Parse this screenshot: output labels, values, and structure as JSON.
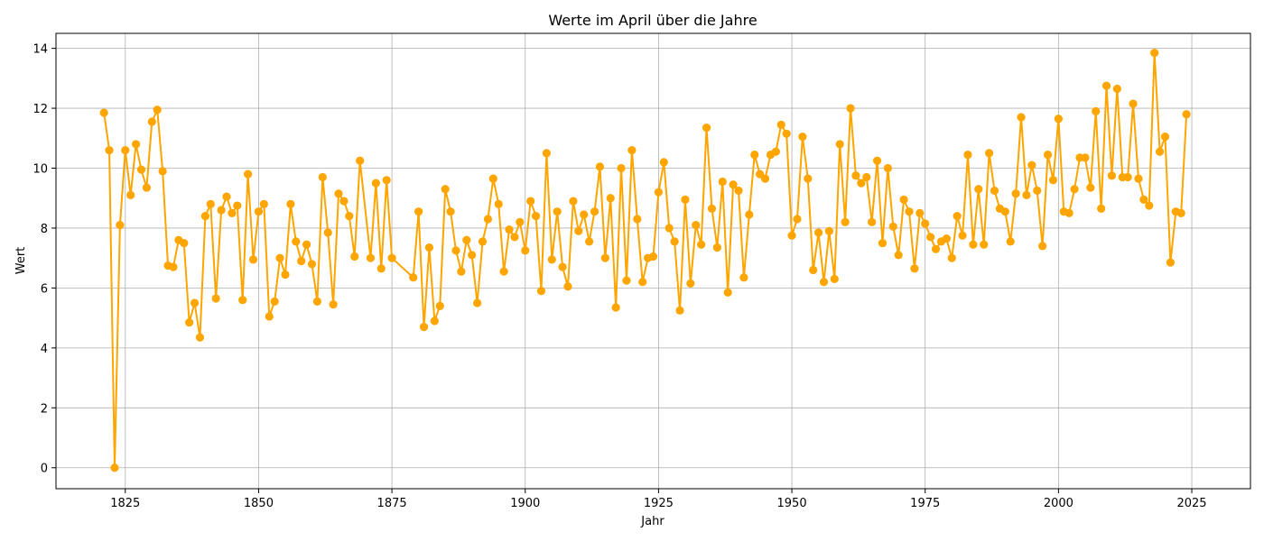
{
  "chart_data": {
    "type": "line",
    "title": "Werte im April über die Jahre",
    "xlabel": "Jahr",
    "ylabel": "Wert",
    "xlim": [
      1812,
      2036
    ],
    "ylim": [
      -0.7,
      14.5
    ],
    "x_ticks": [
      1825,
      1850,
      1875,
      1900,
      1925,
      1950,
      1975,
      2000,
      2025
    ],
    "y_ticks": [
      0,
      2,
      4,
      6,
      8,
      10,
      12,
      14
    ],
    "grid": true,
    "marker": "circle",
    "color": "#FFA500",
    "grid_color": "#b0b0b0",
    "series": [
      {
        "x": [
          1821,
          1822,
          1823,
          1824,
          1825,
          1826,
          1827,
          1828,
          1829,
          1830,
          1831,
          1832,
          1833,
          1834,
          1835,
          1836,
          1837,
          1838,
          1839,
          1840,
          1841,
          1842,
          1843,
          1844,
          1845,
          1846,
          1847,
          1848,
          1849,
          1850,
          1851,
          1852,
          1853,
          1854,
          1855,
          1856,
          1857,
          1858,
          1859,
          1860,
          1861,
          1862,
          1863,
          1864,
          1865,
          1866,
          1867,
          1868,
          1869,
          1871,
          1872,
          1873,
          1874,
          1875,
          1879,
          1880,
          1881,
          1882,
          1883,
          1884,
          1885,
          1886,
          1887,
          1888,
          1889,
          1890,
          1891,
          1892,
          1893,
          1894,
          1895,
          1896,
          1897,
          1898,
          1899,
          1900,
          1901,
          1902,
          1903,
          1904,
          1905,
          1906,
          1907,
          1908,
          1909,
          1910,
          1911,
          1912,
          1913,
          1914,
          1915,
          1916,
          1917,
          1918,
          1919,
          1920,
          1921,
          1922,
          1923,
          1924,
          1925,
          1926,
          1927,
          1928,
          1929,
          1930,
          1931,
          1932,
          1933,
          1934,
          1935,
          1936,
          1937,
          1938,
          1939,
          1940,
          1941,
          1942,
          1943,
          1944,
          1945,
          1946,
          1947,
          1948,
          1949,
          1950,
          1951,
          1952,
          1953,
          1954,
          1955,
          1956,
          1957,
          1958,
          1959,
          1960,
          1961,
          1962,
          1963,
          1964,
          1965,
          1966,
          1967,
          1968,
          1969,
          1970,
          1971,
          1972,
          1973,
          1974,
          1975,
          1976,
          1977,
          1978,
          1979,
          1980,
          1981,
          1982,
          1983,
          1984,
          1985,
          1986,
          1987,
          1988,
          1989,
          1990,
          1991,
          1992,
          1993,
          1994,
          1995,
          1996,
          1997,
          1998,
          1999,
          2000,
          2001,
          2002,
          2003,
          2004,
          2005,
          2006,
          2007,
          2008,
          2009,
          2010,
          2011,
          2012,
          2013,
          2014,
          2015,
          2016,
          2017,
          2018,
          2019,
          2020,
          2021,
          2022,
          2023,
          2024
        ],
        "values": [
          11.85,
          10.6,
          0.0,
          8.1,
          10.6,
          9.1,
          10.8,
          9.95,
          9.35,
          11.55,
          11.95,
          9.9,
          6.75,
          6.7,
          7.6,
          7.5,
          4.85,
          5.5,
          4.35,
          8.4,
          8.8,
          5.65,
          8.6,
          9.05,
          8.5,
          8.75,
          5.6,
          9.8,
          6.95,
          8.55,
          8.8,
          5.05,
          5.55,
          7.0,
          6.45,
          8.8,
          7.55,
          6.9,
          7.45,
          6.8,
          5.55,
          9.7,
          7.85,
          5.45,
          9.15,
          8.9,
          8.4,
          7.05,
          10.25,
          7.0,
          9.5,
          6.65,
          9.6,
          7.0,
          6.35,
          8.55,
          4.7,
          7.35,
          4.9,
          5.4,
          9.3,
          8.55,
          7.25,
          6.55,
          7.6,
          7.1,
          5.5,
          7.55,
          8.3,
          9.65,
          8.8,
          6.55,
          7.95,
          7.7,
          8.2,
          7.25,
          8.9,
          8.4,
          5.9,
          10.5,
          6.95,
          8.55,
          6.7,
          6.05,
          8.9,
          7.9,
          8.45,
          7.55,
          8.55,
          10.05,
          7.0,
          9.0,
          5.35,
          10.0,
          6.25,
          10.6,
          8.3,
          6.2,
          7.0,
          7.05,
          9.2,
          10.2,
          8.0,
          7.55,
          5.25,
          8.95,
          6.15,
          8.1,
          7.45,
          11.35,
          8.65,
          7.35,
          9.55,
          5.85,
          9.45,
          9.25,
          6.35,
          8.45,
          10.45,
          9.8,
          9.65,
          10.45,
          10.55,
          11.45,
          11.15,
          7.75,
          8.3,
          11.05,
          9.65,
          6.6,
          7.85,
          6.2,
          7.9,
          6.3,
          10.8,
          8.2,
          12.0,
          9.75,
          9.5,
          9.7,
          8.2,
          10.25,
          7.5,
          10.0,
          8.05,
          7.1,
          8.95,
          8.55,
          6.65,
          8.5,
          8.15,
          7.7,
          7.3,
          7.55,
          7.65,
          7.0,
          8.4,
          7.75,
          10.45,
          7.45,
          9.3,
          7.45,
          10.5,
          9.25,
          8.65,
          8.55,
          7.55,
          9.15,
          11.7,
          9.1,
          10.1,
          9.25,
          7.4,
          10.45,
          9.6,
          11.65,
          8.55,
          8.5,
          9.3,
          10.35,
          10.35,
          9.35,
          11.9,
          8.65,
          12.75,
          9.75,
          12.65,
          9.7,
          9.7,
          12.15,
          9.65,
          8.95,
          8.75,
          13.85,
          10.55,
          11.05,
          6.85,
          8.55,
          8.5,
          11.8
        ]
      }
    ]
  }
}
